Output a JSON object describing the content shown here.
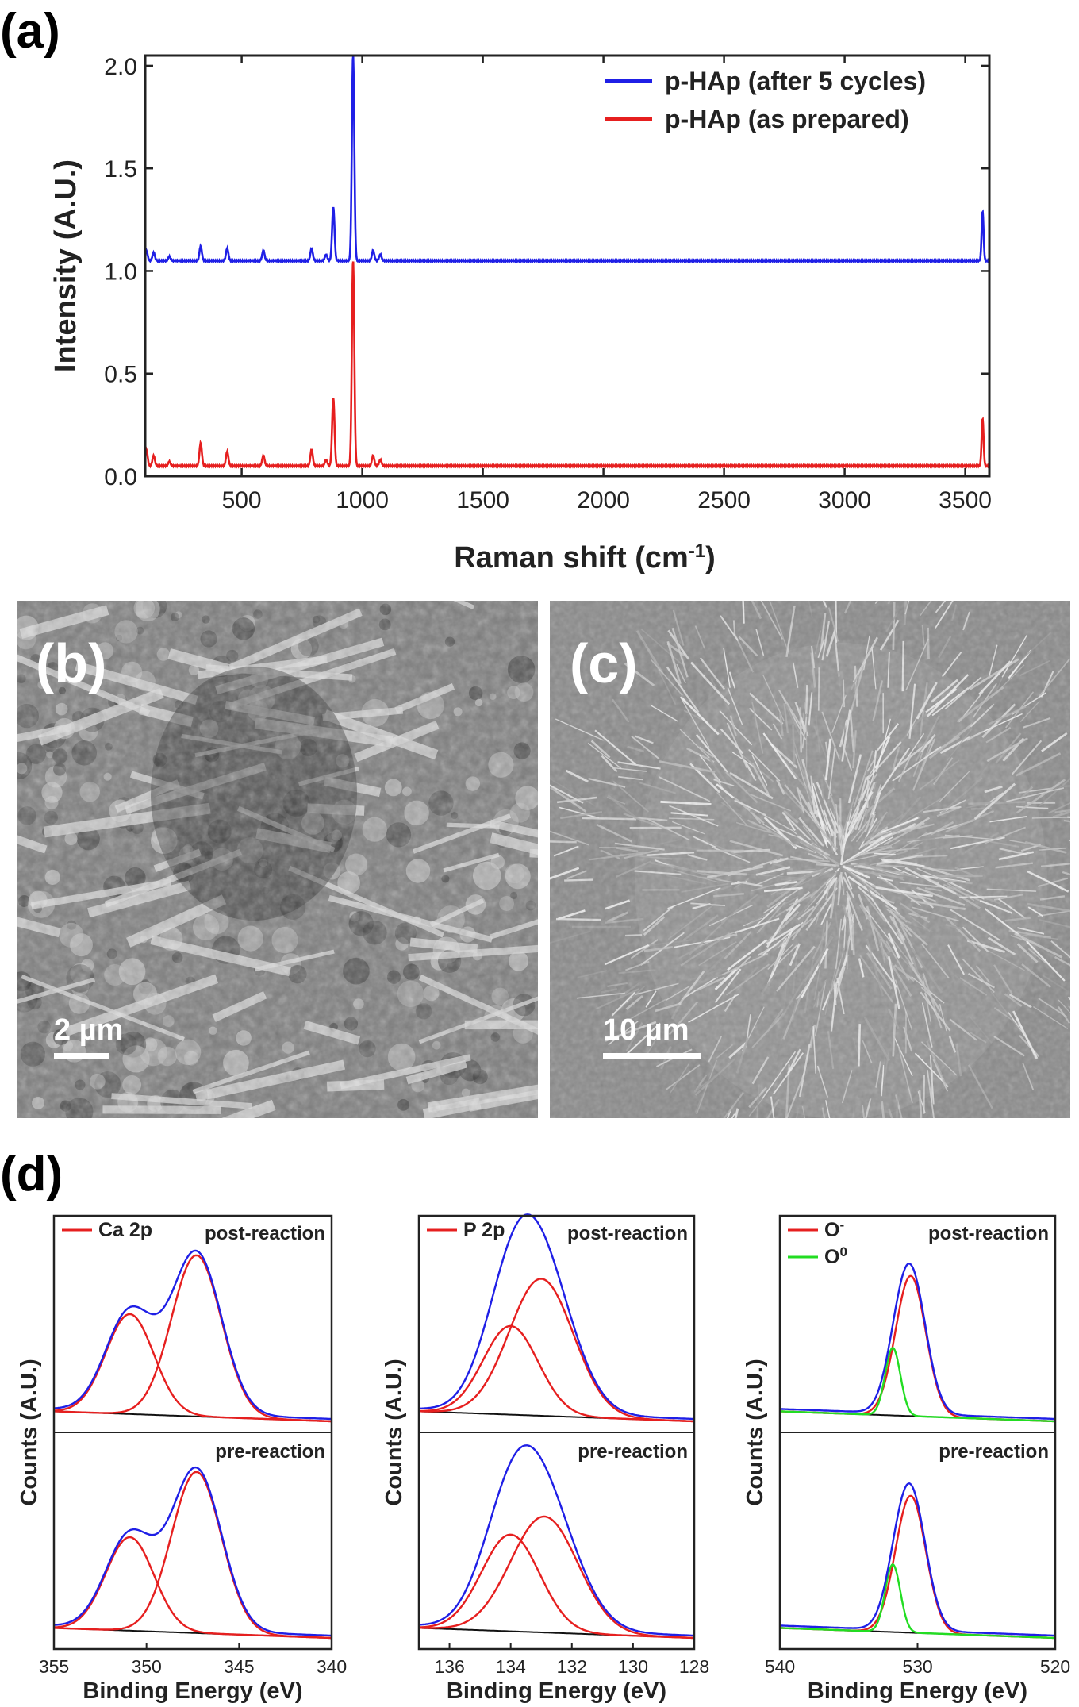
{
  "panel_labels": {
    "a": "(a)",
    "b": "(b)",
    "c": "(c)",
    "d": "(d)"
  },
  "sem": {
    "b": {
      "scale_label": "2 µm"
    },
    "c": {
      "scale_label": "10 µm"
    }
  },
  "chart_data": [
    {
      "type": "line",
      "panel": "(a)",
      "xlabel": "Raman shift (cm",
      "xlabel_sup": "-1",
      "xlabel_close": ")",
      "ylabel": "Intensity (A.U.)",
      "xlim": [
        100,
        3600
      ],
      "ylim": [
        0,
        2.05
      ],
      "xticks": [
        "500",
        "1000",
        "1500",
        "2000",
        "2500",
        "3000",
        "3500"
      ],
      "yticks": [
        "0.0",
        "0.5",
        "1.0",
        "1.5",
        "2.0"
      ],
      "legend_position": "top-right",
      "series": [
        {
          "name": "p-HAp (after 5 cycles)",
          "color": "#1f1fe6",
          "baseline": 1.05,
          "peaks": [
            [
              105,
              0.05
            ],
            [
              135,
              0.04
            ],
            [
              200,
              0.02
            ],
            [
              330,
              0.07
            ],
            [
              440,
              0.06
            ],
            [
              590,
              0.05
            ],
            [
              790,
              0.06
            ],
            [
              850,
              0.03
            ],
            [
              880,
              0.26
            ],
            [
              962,
              1.0
            ],
            [
              1045,
              0.05
            ],
            [
              1075,
              0.03
            ],
            [
              3572,
              0.24
            ]
          ]
        },
        {
          "name": "p-HAp (as prepared)",
          "color": "#e61f1f",
          "baseline": 0.05,
          "peaks": [
            [
              105,
              0.08
            ],
            [
              135,
              0.05
            ],
            [
              200,
              0.02
            ],
            [
              330,
              0.11
            ],
            [
              440,
              0.07
            ],
            [
              590,
              0.05
            ],
            [
              790,
              0.08
            ],
            [
              850,
              0.03
            ],
            [
              880,
              0.33
            ],
            [
              962,
              1.0
            ],
            [
              1045,
              0.05
            ],
            [
              1075,
              0.03
            ],
            [
              3572,
              0.23
            ]
          ]
        }
      ]
    },
    {
      "type": "line",
      "panel": "(d) Ca 2p",
      "xlabel": "Binding Energy (eV)",
      "ylabel": "Counts (A.U.)",
      "xlim": [
        355,
        340
      ],
      "xticks": [
        "355",
        "350",
        "345",
        "340"
      ],
      "legend": [
        "Ca 2p"
      ],
      "tags": [
        "post-reaction",
        "pre-reaction"
      ],
      "components": {
        "post": [
          {
            "center": 350.9,
            "amp": 0.62,
            "width": 1.3
          },
          {
            "center": 347.3,
            "amp": 1.0,
            "width": 1.35
          }
        ],
        "pre": [
          {
            "center": 350.9,
            "amp": 0.58,
            "width": 1.3
          },
          {
            "center": 347.3,
            "amp": 1.0,
            "width": 1.35
          }
        ]
      }
    },
    {
      "type": "line",
      "panel": "(d) P 2p",
      "xlabel": "Binding Energy (eV)",
      "ylabel": "Counts (A.U.)",
      "xlim": [
        137,
        128
      ],
      "xticks": [
        "136",
        "134",
        "132",
        "130",
        "128"
      ],
      "legend": [
        "P 2p"
      ],
      "tags": [
        "post-reaction",
        "pre-reaction"
      ],
      "components": {
        "post": [
          {
            "center": 134.0,
            "amp": 0.55,
            "width": 0.9
          },
          {
            "center": 133.0,
            "amp": 0.85,
            "width": 1.05
          }
        ],
        "pre": [
          {
            "center": 134.0,
            "amp": 0.6,
            "width": 0.95
          },
          {
            "center": 132.9,
            "amp": 0.72,
            "width": 1.1
          }
        ]
      }
    },
    {
      "type": "line",
      "panel": "(d) O 1s",
      "xlabel": "Binding Energy (eV)",
      "ylabel": "Counts (A.U.)",
      "xlim": [
        540,
        520
      ],
      "xticks": [
        "540",
        "530",
        "520"
      ],
      "legend": [
        "O",
        "O"
      ],
      "legend_sup": [
        "-",
        "0"
      ],
      "tags": [
        "post-reaction",
        "pre-reaction"
      ],
      "components": {
        "post": [
          {
            "center": 530.5,
            "amp": 0.87,
            "width": 1.1,
            "color": "#e61f1f"
          },
          {
            "center": 531.8,
            "amp": 0.42,
            "width": 0.55,
            "color": "#22dd22"
          }
        ],
        "pre": [
          {
            "center": 530.5,
            "amp": 0.85,
            "width": 1.1,
            "color": "#e61f1f"
          },
          {
            "center": 531.8,
            "amp": 0.42,
            "width": 0.55,
            "color": "#22dd22"
          }
        ]
      }
    }
  ]
}
